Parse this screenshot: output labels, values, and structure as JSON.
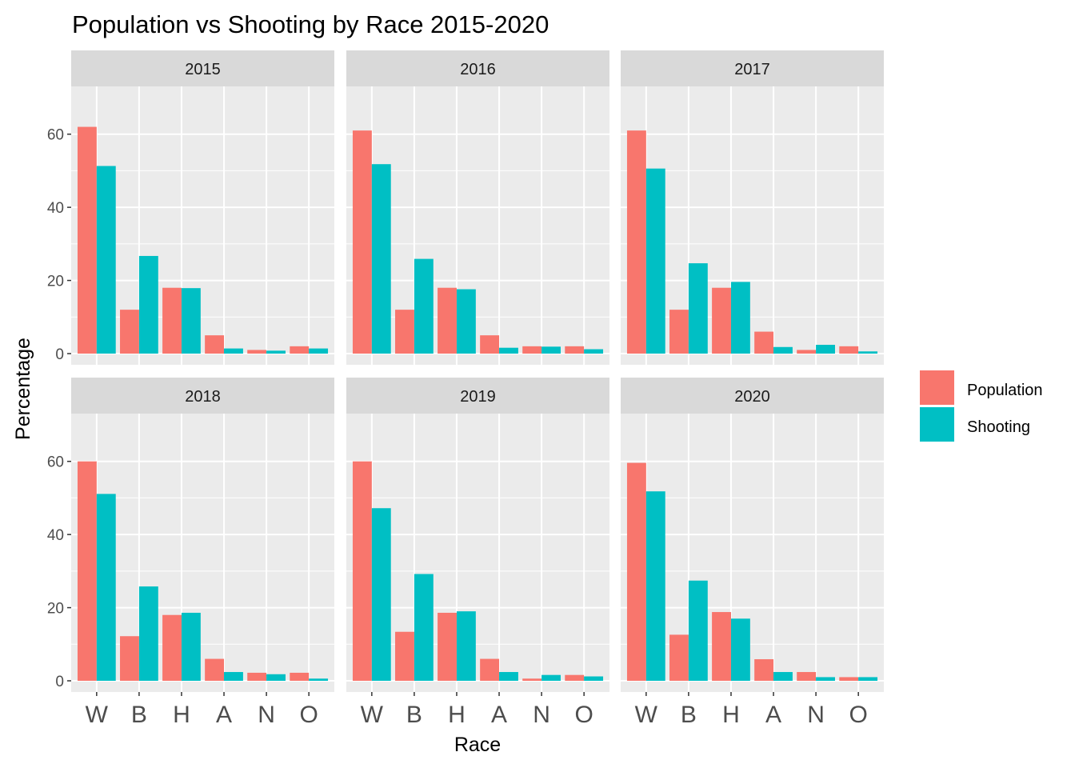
{
  "chart_data": {
    "type": "bar",
    "title": "Population vs Shooting by Race 2015-2020",
    "xlabel": "Race",
    "ylabel": "Percentage",
    "categories": [
      "W",
      "B",
      "H",
      "A",
      "N",
      "O"
    ],
    "ylim": [
      0,
      70
    ],
    "yticks": [
      0,
      20,
      40,
      60
    ],
    "grid": true,
    "legend_position": "right",
    "series_names": [
      "Population",
      "Shooting"
    ],
    "series_colors": [
      "#F8766D",
      "#00BFC4"
    ],
    "facets": [
      {
        "label": "2015",
        "series": [
          {
            "name": "Population",
            "values": [
              62,
              12,
              18,
              5,
              1,
              2
            ]
          },
          {
            "name": "Shooting",
            "values": [
              51.3,
              26.7,
              17.9,
              1.4,
              0.8,
              1.4
            ]
          }
        ]
      },
      {
        "label": "2016",
        "series": [
          {
            "name": "Population",
            "values": [
              61,
              12,
              18,
              5,
              2,
              2
            ]
          },
          {
            "name": "Shooting",
            "values": [
              51.8,
              25.9,
              17.6,
              1.6,
              1.9,
              1.2
            ]
          }
        ]
      },
      {
        "label": "2017",
        "series": [
          {
            "name": "Population",
            "values": [
              61,
              12,
              18,
              6,
              1,
              2
            ]
          },
          {
            "name": "Shooting",
            "values": [
              50.6,
              24.7,
              19.6,
              1.8,
              2.4,
              0.6
            ]
          }
        ]
      },
      {
        "label": "2018",
        "series": [
          {
            "name": "Population",
            "values": [
              60,
              12.2,
              18,
              6,
              2.2,
              2.2
            ]
          },
          {
            "name": "Shooting",
            "values": [
              51.1,
              25.8,
              18.6,
              2.4,
              1.8,
              0.6
            ]
          }
        ]
      },
      {
        "label": "2019",
        "series": [
          {
            "name": "Population",
            "values": [
              60,
              13.4,
              18.6,
              6,
              0.6,
              1.6
            ]
          },
          {
            "name": "Shooting",
            "values": [
              47.2,
              29.2,
              19.0,
              2.4,
              1.6,
              1.2
            ]
          }
        ]
      },
      {
        "label": "2020",
        "series": [
          {
            "name": "Population",
            "values": [
              59.6,
              12.6,
              18.8,
              5.9,
              2.4,
              1.0
            ]
          },
          {
            "name": "Shooting",
            "values": [
              51.8,
              27.4,
              17.0,
              2.4,
              1.0,
              1.0
            ]
          }
        ]
      }
    ]
  }
}
